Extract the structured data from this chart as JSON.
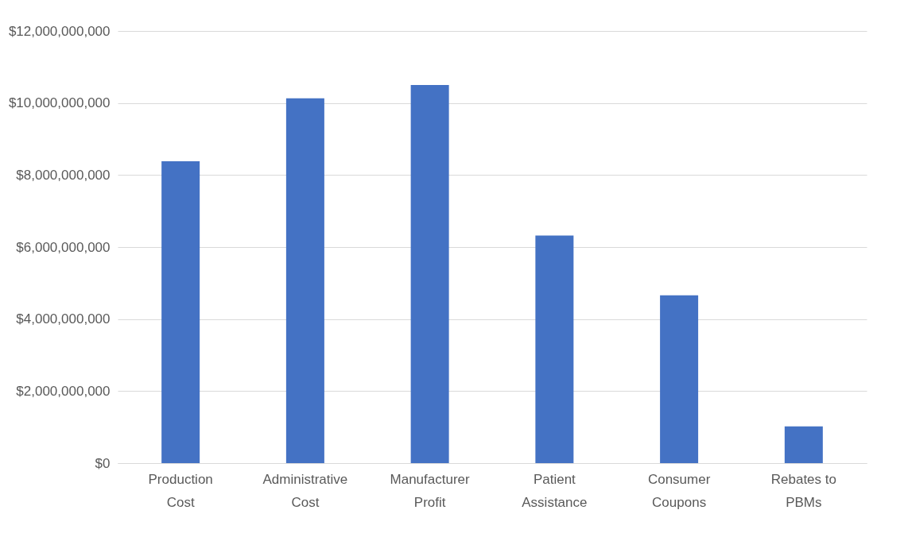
{
  "chart_data": {
    "type": "bar",
    "categories": [
      "Production Cost",
      "Administrative Cost",
      "Manufacturer Profit",
      "Patient Assistance",
      "Consumer Coupons",
      "Rebates to PBMs"
    ],
    "values": [
      8380000000,
      10130000000,
      10500000000,
      6320000000,
      4660000000,
      1020000000
    ],
    "color": "#4472c4",
    "ylim": [
      0,
      12000000000
    ],
    "yticks": [
      {
        "value": 0,
        "label": "$0"
      },
      {
        "value": 2000000000,
        "label": "$2,000,000,000"
      },
      {
        "value": 4000000000,
        "label": "$4,000,000,000"
      },
      {
        "value": 6000000000,
        "label": "$6,000,000,000"
      },
      {
        "value": 8000000000,
        "label": "$8,000,000,000"
      },
      {
        "value": 10000000000,
        "label": "$10,000,000,000"
      },
      {
        "value": 12000000000,
        "label": "$12,000,000,000"
      }
    ],
    "grid": "y"
  }
}
